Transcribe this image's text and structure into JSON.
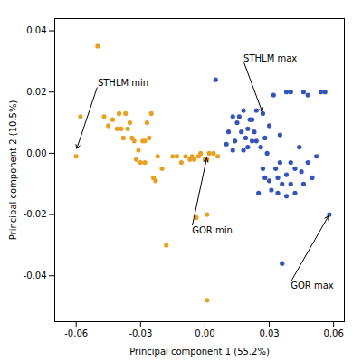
{
  "chart_data": {
    "type": "scatter",
    "xlabel": "Principal component 1 (55.2%)",
    "ylabel": "Principal component 2 (10.5%)",
    "xlim": [
      -0.07,
      0.065
    ],
    "ylim": [
      -0.055,
      0.044
    ],
    "xticks": [
      -0.06,
      -0.03,
      {
        "value": 0,
        "label": "0.00"
      },
      0.03,
      0.06
    ],
    "yticks": [
      -0.04,
      -0.02,
      {
        "value": 0,
        "label": "0.00"
      },
      0.02,
      0.04
    ],
    "grid": false,
    "series": [
      {
        "color": "#E8A020",
        "values": [
          [
            -0.06,
            -0.001
          ],
          [
            -0.058,
            0.012
          ],
          [
            -0.05,
            0.035
          ],
          [
            -0.047,
            0.012
          ],
          [
            -0.045,
            0.009
          ],
          [
            -0.043,
            0.011
          ],
          [
            -0.041,
            0.008
          ],
          [
            -0.04,
            0.013
          ],
          [
            -0.039,
            0.008
          ],
          [
            -0.038,
            0.005
          ],
          [
            -0.037,
            0.013
          ],
          [
            -0.036,
            0.008
          ],
          [
            -0.035,
            0.01
          ],
          [
            -0.034,
            0.005
          ],
          [
            -0.033,
            0.004
          ],
          [
            -0.032,
            -0.002
          ],
          [
            -0.031,
            0.001
          ],
          [
            -0.03,
            -0.003
          ],
          [
            -0.029,
            0.004
          ],
          [
            -0.028,
            0.004
          ],
          [
            -0.028,
            -0.003
          ],
          [
            -0.027,
            0.01
          ],
          [
            -0.026,
            0.005
          ],
          [
            -0.025,
            0.013
          ],
          [
            -0.024,
            -0.008
          ],
          [
            -0.023,
            -0.009
          ],
          [
            -0.022,
            -0.001
          ],
          [
            -0.02,
            -0.005
          ],
          [
            -0.018,
            -0.03
          ],
          [
            -0.015,
            -0.001
          ],
          [
            -0.013,
            -0.001
          ],
          [
            -0.011,
            -0.003
          ],
          [
            -0.009,
            -0.001
          ],
          [
            -0.007,
            -0.002
          ],
          [
            -0.006,
            -0.001
          ],
          [
            -0.005,
            -0.002
          ],
          [
            -0.004,
            -0.021
          ],
          [
            -0.003,
            -0.001
          ],
          [
            -0.002,
            0.0
          ],
          [
            0.0,
            -0.002
          ],
          [
            0.001,
            -0.02
          ],
          [
            0.001,
            -0.002
          ],
          [
            0.002,
            0.0
          ],
          [
            0.004,
            0.0
          ],
          [
            0.006,
            -0.001
          ],
          [
            0.001,
            -0.048
          ]
        ]
      },
      {
        "color": "#3355BB",
        "values": [
          [
            0.005,
            0.024
          ],
          [
            0.01,
            0.003
          ],
          [
            0.011,
            0.007
          ],
          [
            0.013,
            0.001
          ],
          [
            0.013,
            0.012
          ],
          [
            0.014,
            0.004
          ],
          [
            0.015,
            0.01
          ],
          [
            0.016,
            0.012
          ],
          [
            0.017,
            0.007
          ],
          [
            0.018,
            0.014
          ],
          [
            0.018,
            0.001
          ],
          [
            0.019,
            0.005
          ],
          [
            0.02,
            0.008
          ],
          [
            0.02,
            0.002
          ],
          [
            0.021,
            0.011
          ],
          [
            0.022,
            0.011
          ],
          [
            0.022,
            0.004
          ],
          [
            0.023,
            0.007
          ],
          [
            0.024,
            0.014
          ],
          [
            0.024,
            0.004
          ],
          [
            0.025,
            -0.013
          ],
          [
            0.026,
            0.002
          ],
          [
            0.027,
            0.013
          ],
          [
            0.027,
            -0.005
          ],
          [
            0.028,
            -0.008
          ],
          [
            0.028,
            0.005
          ],
          [
            0.029,
            0.0
          ],
          [
            0.03,
            0.009
          ],
          [
            0.03,
            -0.009
          ],
          [
            0.031,
            -0.012
          ],
          [
            0.032,
            0.019
          ],
          [
            0.033,
            -0.005
          ],
          [
            0.034,
            -0.008
          ],
          [
            0.034,
            -0.013
          ],
          [
            0.035,
            0.006
          ],
          [
            0.035,
            -0.003
          ],
          [
            0.036,
            -0.01
          ],
          [
            0.038,
            -0.007
          ],
          [
            0.038,
            -0.014
          ],
          [
            0.038,
            0.02
          ],
          [
            0.04,
            0.02
          ],
          [
            0.04,
            -0.003
          ],
          [
            0.04,
            -0.01
          ],
          [
            0.042,
            -0.005
          ],
          [
            0.042,
            -0.013
          ],
          [
            0.044,
            0.002
          ],
          [
            0.045,
            -0.006
          ],
          [
            0.046,
            -0.01
          ],
          [
            0.046,
            0.02
          ],
          [
            0.048,
            0.019
          ],
          [
            0.048,
            -0.003
          ],
          [
            0.05,
            -0.008
          ],
          [
            0.052,
            -0.001
          ],
          [
            0.054,
            0.02
          ],
          [
            0.056,
            0.02
          ],
          [
            0.058,
            -0.02
          ],
          [
            0.036,
            -0.036
          ]
        ]
      }
    ],
    "annotations": [
      {
        "text": "STHLM min",
        "xy": [
          -0.06,
          0.001
        ],
        "xytext": [
          -0.05,
          0.022
        ]
      },
      {
        "text": "STHLM max",
        "xy": [
          0.027,
          0.013
        ],
        "xytext": [
          0.018,
          0.03
        ]
      },
      {
        "text": "GOR min",
        "xy": [
          0.001,
          -0.001
        ],
        "xytext": [
          -0.006,
          -0.024
        ]
      },
      {
        "text": "GOR max",
        "xy": [
          0.058,
          -0.02
        ],
        "xytext": [
          0.04,
          -0.042
        ]
      }
    ]
  }
}
